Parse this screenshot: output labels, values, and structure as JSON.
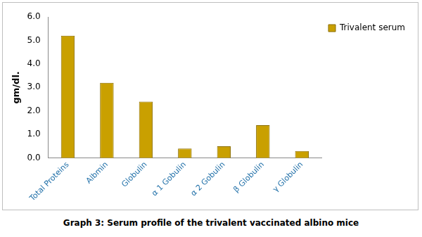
{
  "chart_data": {
    "type": "bar",
    "title": "Graph 3: Serum profile of the trivalent vaccinated albino mice",
    "y_label": "gm/dl.",
    "categories": [
      "Total Proteins",
      "Albmin",
      "Globulin",
      "α 1 Gobulin",
      "α 2 Gobulin",
      "β Globulin",
      "γ Globulin"
    ],
    "series": [
      {
        "name": "Trivalent serum",
        "color": "#c9a000",
        "values": [
          5.2,
          3.2,
          2.4,
          0.4,
          0.5,
          1.4,
          0.3
        ]
      }
    ],
    "ylim": [
      0,
      6
    ],
    "yticks": [
      {
        "value": 0,
        "label": "0.0"
      },
      {
        "value": 1,
        "label": "1.0"
      },
      {
        "value": 2,
        "label": "2.0"
      },
      {
        "value": 3,
        "label": "3.0"
      },
      {
        "value": 4,
        "label": "4.0"
      },
      {
        "value": 5,
        "label": "5.0"
      },
      {
        "value": 6,
        "label": "6.0"
      }
    ],
    "grid": false,
    "legend": "top-right"
  }
}
